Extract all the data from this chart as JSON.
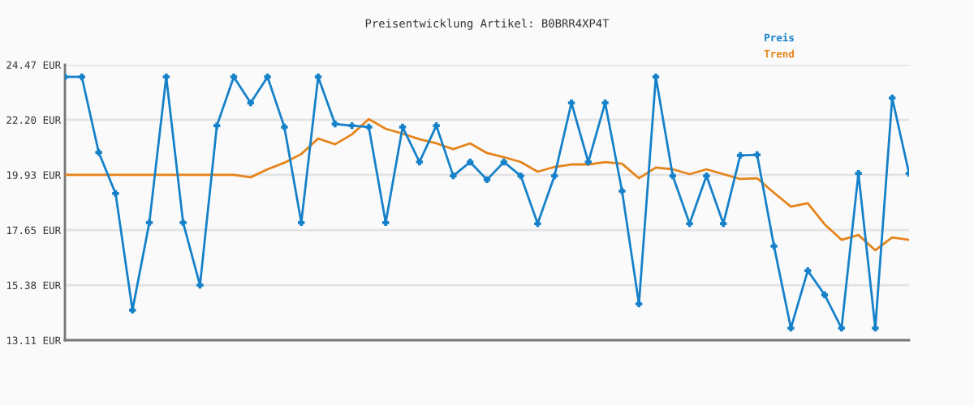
{
  "chart_data": {
    "type": "line",
    "title": "Preisentwicklung Artikel: B0BRR4XP4T",
    "categories": [
      null,
      null,
      null,
      null,
      null,
      null,
      null,
      null,
      null,
      null,
      null,
      null,
      null,
      null,
      null,
      null,
      null,
      null,
      null,
      null,
      null,
      null,
      null,
      null,
      null,
      null,
      null,
      null,
      null,
      null,
      null,
      null,
      null,
      null,
      null,
      null,
      null,
      null,
      null,
      null,
      null,
      null,
      null,
      null,
      null,
      null,
      null,
      null,
      null,
      null,
      null
    ],
    "series": [
      {
        "name": "Preis",
        "color": "#1581c9",
        "marker": "cross",
        "values": [
          23.97,
          23.97,
          20.86,
          19.16,
          14.35,
          17.96,
          23.97,
          17.96,
          15.38,
          21.96,
          23.97,
          22.9,
          23.97,
          21.9,
          17.96,
          23.97,
          22.03,
          21.96,
          21.9,
          17.96,
          21.9,
          20.46,
          21.96,
          19.89,
          20.46,
          19.73,
          20.46,
          19.89,
          17.92,
          19.89,
          22.9,
          20.46,
          22.9,
          19.26,
          14.61,
          23.97,
          19.89,
          17.92,
          19.89,
          17.92,
          20.73,
          20.76,
          16.99,
          13.61,
          15.98,
          14.98,
          13.61,
          19.99,
          13.61,
          23.1,
          19.99
        ]
      },
      {
        "name": "Trend",
        "color": "#e5841a",
        "marker": "none",
        "values": [
          19.93,
          19.93,
          19.93,
          19.93,
          19.93,
          19.93,
          19.93,
          19.93,
          19.93,
          19.93,
          19.93,
          19.83,
          20.16,
          20.43,
          20.79,
          21.43,
          21.19,
          21.6,
          22.23,
          21.83,
          21.63,
          21.4,
          21.23,
          20.99,
          21.23,
          20.83,
          20.66,
          20.46,
          20.06,
          20.26,
          20.36,
          20.36,
          20.46,
          20.39,
          19.79,
          20.23,
          20.16,
          19.96,
          20.16,
          19.96,
          19.76,
          19.79,
          19.19,
          18.62,
          18.76,
          17.89,
          17.25,
          17.45,
          16.82,
          17.35,
          17.25
        ]
      }
    ],
    "ylim": [
      13.11,
      24.47
    ],
    "yticks": [
      {
        "value": 13.11,
        "label": "13.11 EUR"
      },
      {
        "value": 15.38,
        "label": "15.38 EUR"
      },
      {
        "value": 17.65,
        "label": "17.65 EUR"
      },
      {
        "value": 19.93,
        "label": "19.93 EUR"
      },
      {
        "value": 22.2,
        "label": "22.20 EUR"
      },
      {
        "value": 24.47,
        "label": "24.47 EUR"
      }
    ],
    "tick_labels": "y",
    "grid": "y",
    "legend": "top right",
    "line_style": "solid"
  }
}
